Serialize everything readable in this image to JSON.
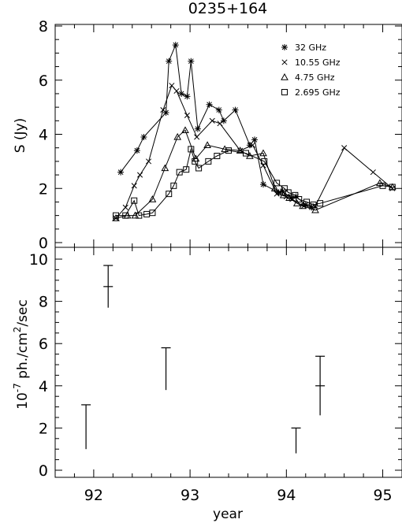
{
  "chart_data": [
    {
      "type": "scatter",
      "title": "0235+164",
      "xlabel": "",
      "ylabel": "S (Jy)",
      "xlim": [
        91.6,
        95.2
      ],
      "ylim": [
        0,
        8
      ],
      "yticks": [
        0,
        2,
        4,
        6,
        8
      ],
      "grid": false,
      "legend_position": "top-right",
      "series": [
        {
          "name": "32 GHz",
          "marker": "asterisk",
          "points": [
            [
              92.28,
              2.6
            ],
            [
              92.45,
              3.4
            ],
            [
              92.52,
              3.9
            ],
            [
              92.75,
              4.8
            ],
            [
              92.78,
              6.7
            ],
            [
              92.85,
              7.3
            ],
            [
              92.91,
              5.5
            ],
            [
              92.97,
              5.4
            ],
            [
              93.01,
              6.7
            ],
            [
              93.08,
              4.2
            ],
            [
              93.2,
              5.1
            ],
            [
              93.3,
              4.9
            ],
            [
              93.35,
              4.5
            ],
            [
              93.47,
              4.9
            ],
            [
              93.62,
              3.6
            ],
            [
              93.67,
              3.8
            ],
            [
              93.76,
              2.15
            ],
            [
              93.92,
              1.85
            ],
            [
              93.96,
              1.9
            ],
            [
              94.05,
              1.65
            ],
            [
              94.1,
              1.7
            ],
            [
              94.2,
              1.4
            ],
            [
              94.26,
              1.3
            ]
          ]
        },
        {
          "name": "10.55 GHz",
          "marker": "x",
          "points": [
            [
              92.23,
              0.9
            ],
            [
              92.33,
              1.3
            ],
            [
              92.42,
              2.1
            ],
            [
              92.48,
              2.5
            ],
            [
              92.57,
              3.0
            ],
            [
              92.72,
              4.9
            ],
            [
              92.81,
              5.8
            ],
            [
              92.86,
              5.6
            ],
            [
              92.97,
              4.7
            ],
            [
              93.07,
              3.9
            ],
            [
              93.23,
              4.5
            ],
            [
              93.31,
              4.4
            ],
            [
              93.52,
              3.4
            ],
            [
              93.65,
              3.6
            ],
            [
              93.76,
              2.85
            ],
            [
              93.9,
              1.8
            ],
            [
              94.0,
              1.7
            ],
            [
              94.06,
              1.6
            ],
            [
              94.18,
              1.35
            ],
            [
              94.3,
              1.35
            ],
            [
              94.6,
              3.5
            ],
            [
              94.9,
              2.6
            ],
            [
              95.1,
              2.0
            ]
          ]
        },
        {
          "name": "4.75 GHz",
          "marker": "triangle",
          "points": [
            [
              92.23,
              0.9
            ],
            [
              92.35,
              1.0
            ],
            [
              92.43,
              1.0
            ],
            [
              92.61,
              1.6
            ],
            [
              92.74,
              2.75
            ],
            [
              92.87,
              3.9
            ],
            [
              92.95,
              4.15
            ],
            [
              93.06,
              3.1
            ],
            [
              93.18,
              3.6
            ],
            [
              93.36,
              3.45
            ],
            [
              93.52,
              3.4
            ],
            [
              93.62,
              3.2
            ],
            [
              93.76,
              3.3
            ],
            [
              93.88,
              2.0
            ],
            [
              93.97,
              1.75
            ],
            [
              94.03,
              1.65
            ],
            [
              94.11,
              1.45
            ],
            [
              94.17,
              1.35
            ],
            [
              94.3,
              1.2
            ],
            [
              94.97,
              2.2
            ],
            [
              95.1,
              2.05
            ]
          ]
        },
        {
          "name": "2.695 GHz",
          "marker": "square",
          "points": [
            [
              92.23,
              1.0
            ],
            [
              92.33,
              1.0
            ],
            [
              92.42,
              1.55
            ],
            [
              92.47,
              1.0
            ],
            [
              92.55,
              1.05
            ],
            [
              92.61,
              1.1
            ],
            [
              92.78,
              1.8
            ],
            [
              92.83,
              2.1
            ],
            [
              92.89,
              2.6
            ],
            [
              92.96,
              2.7
            ],
            [
              93.01,
              3.45
            ],
            [
              93.05,
              3.0
            ],
            [
              93.09,
              2.75
            ],
            [
              93.19,
              3.0
            ],
            [
              93.28,
              3.2
            ],
            [
              93.4,
              3.4
            ],
            [
              93.58,
              3.3
            ],
            [
              93.77,
              3.0
            ],
            [
              93.9,
              2.2
            ],
            [
              93.98,
              2.0
            ],
            [
              94.02,
              1.85
            ],
            [
              94.09,
              1.75
            ],
            [
              94.13,
              1.6
            ],
            [
              94.21,
              1.5
            ],
            [
              94.28,
              1.4
            ],
            [
              94.35,
              1.45
            ],
            [
              95.0,
              2.1
            ],
            [
              95.1,
              2.05
            ]
          ]
        }
      ]
    },
    {
      "type": "scatter",
      "title": "",
      "xlabel": "year",
      "ylabel": "10⁻⁷ ph./cm²/sec",
      "ylabel_parts": [
        "10",
        "-7",
        " ph./cm",
        "2",
        "/sec"
      ],
      "xlim": [
        91.6,
        95.2
      ],
      "ylim": [
        0,
        10.5
      ],
      "xticks": [
        92,
        93,
        94,
        95
      ],
      "yticks": [
        0,
        2,
        4,
        6,
        8,
        10
      ],
      "grid": false,
      "series": [
        {
          "name": "",
          "points": [
            {
              "x": 92.15,
              "y": 8.7,
              "ylo": 7.7,
              "yhi": 9.7,
              "center_tick": true
            },
            {
              "x": 91.92,
              "y": 2.05,
              "ylo": 1.0,
              "yhi": 3.1,
              "center_tick": false
            },
            {
              "x": 92.75,
              "y": 4.8,
              "ylo": 3.8,
              "yhi": 5.8,
              "center_tick": false
            },
            {
              "x": 94.1,
              "y": 1.4,
              "ylo": 0.8,
              "yhi": 2.0,
              "center_tick": false
            },
            {
              "x": 94.35,
              "y": 4.0,
              "ylo": 2.6,
              "yhi": 5.4,
              "center_tick": true
            }
          ]
        }
      ]
    }
  ]
}
